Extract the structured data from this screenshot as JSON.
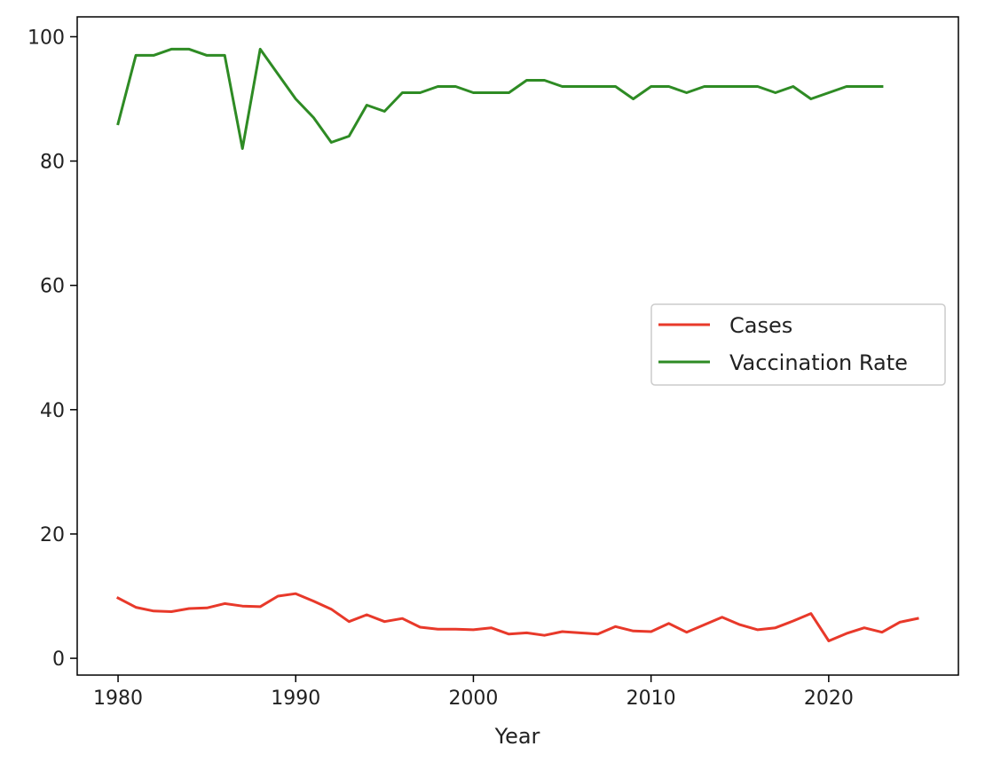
{
  "chart_data": {
    "type": "line",
    "title": "",
    "xlabel": "Year",
    "ylabel": "",
    "xlim": [
      1977.7,
      2027.3
    ],
    "ylim": [
      -2.7,
      103.2
    ],
    "xticks": [
      1980,
      1990,
      2000,
      2010,
      2020
    ],
    "yticks": [
      0,
      20,
      40,
      60,
      80,
      100
    ],
    "grid": false,
    "legend_position": "center-right",
    "series": [
      {
        "name": "Cases",
        "color": "#e8392a",
        "x": [
          1980,
          1981,
          1982,
          1983,
          1984,
          1985,
          1986,
          1987,
          1988,
          1989,
          1990,
          1991,
          1992,
          1993,
          1994,
          1995,
          1996,
          1997,
          1998,
          1999,
          2000,
          2001,
          2002,
          2003,
          2004,
          2005,
          2006,
          2007,
          2008,
          2009,
          2010,
          2011,
          2012,
          2013,
          2014,
          2015,
          2016,
          2017,
          2018,
          2019,
          2020,
          2021,
          2022,
          2023,
          2024,
          2025
        ],
        "values": [
          9.7,
          8.2,
          7.6,
          7.5,
          8.0,
          8.1,
          8.8,
          8.4,
          8.3,
          10.0,
          10.4,
          9.2,
          7.9,
          5.9,
          7.0,
          5.9,
          6.4,
          5.0,
          4.7,
          4.7,
          4.6,
          4.9,
          3.9,
          4.1,
          3.7,
          4.3,
          4.1,
          3.9,
          5.1,
          4.4,
          4.3,
          5.6,
          4.2,
          5.4,
          6.6,
          5.4,
          4.6,
          4.9,
          6.0,
          7.2,
          2.8,
          4.0,
          4.9,
          4.2,
          5.8,
          6.4
        ]
      },
      {
        "name": "Vaccination Rate",
        "color": "#2e8b24",
        "x": [
          1980,
          1981,
          1982,
          1983,
          1984,
          1985,
          1986,
          1987,
          1988,
          1989,
          1990,
          1991,
          1992,
          1993,
          1994,
          1995,
          1996,
          1997,
          1998,
          1999,
          2000,
          2001,
          2002,
          2003,
          2004,
          2005,
          2006,
          2007,
          2008,
          2009,
          2010,
          2011,
          2012,
          2013,
          2014,
          2015,
          2016,
          2017,
          2018,
          2019,
          2020,
          2021,
          2022,
          2023
        ],
        "values": [
          86,
          97,
          97,
          98,
          98,
          97,
          97,
          82,
          98,
          94,
          90,
          87,
          83,
          84,
          89,
          88,
          91,
          91,
          92,
          92,
          91,
          91,
          91,
          93,
          93,
          92,
          92,
          92,
          92,
          90,
          92,
          92,
          91,
          92,
          92,
          92,
          92,
          91,
          92,
          90,
          91,
          92,
          92,
          92
        ]
      }
    ]
  }
}
